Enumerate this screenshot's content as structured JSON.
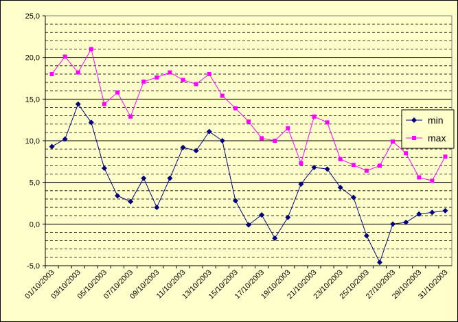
{
  "chart_data": {
    "type": "line",
    "categories": [
      "01/10/2003",
      null,
      "03/10/2003",
      null,
      "05/10/2003",
      null,
      "07/10/2003",
      null,
      "09/10/2003",
      null,
      "11/10/2003",
      null,
      "13/10/2003",
      null,
      "15/10/2003",
      null,
      "17/10/2003",
      null,
      "19/10/2003",
      null,
      "21/10/2003",
      null,
      "23/10/2003",
      null,
      "25/10/2003",
      null,
      "27/10/2003",
      null,
      "29/10/2003",
      null,
      "31/10/2003"
    ],
    "series": [
      {
        "name": "min",
        "color": "#000080",
        "marker": "diamond",
        "values": [
          9.3,
          10.2,
          14.4,
          12.2,
          6.7,
          3.4,
          2.7,
          5.5,
          2.0,
          5.5,
          9.2,
          8.8,
          11.1,
          10.0,
          2.8,
          -0.1,
          1.1,
          -1.7,
          0.8,
          4.8,
          6.8,
          6.6,
          4.4,
          3.2,
          -1.4,
          -4.6,
          0.0,
          0.2,
          1.2,
          1.4,
          1.6
        ]
      },
      {
        "name": "max",
        "color": "#ff00ff",
        "marker": "square",
        "values": [
          18.0,
          20.1,
          18.2,
          21.0,
          14.4,
          15.8,
          12.9,
          17.1,
          17.6,
          18.2,
          17.3,
          16.8,
          18.0,
          15.4,
          13.9,
          12.3,
          10.3,
          10.0,
          11.5,
          7.3,
          12.9,
          12.2,
          7.8,
          7.1,
          6.4,
          7.0,
          9.9,
          8.5,
          5.6,
          5.2,
          8.1
        ]
      }
    ],
    "ylim": [
      -5,
      25
    ],
    "yticks": [
      {
        "value": -5,
        "label": "-5,0"
      },
      {
        "value": 0,
        "label": "0,0"
      },
      {
        "value": 5,
        "label": "5,0"
      },
      {
        "value": 10,
        "label": "10,0"
      },
      {
        "value": 15,
        "label": "15,0"
      },
      {
        "value": 20,
        "label": "20,0"
      },
      {
        "value": 25,
        "label": "25,0"
      }
    ],
    "minor_yticks": [
      -4,
      -3,
      -2,
      -1,
      1,
      2,
      3,
      4,
      6,
      7,
      8,
      9,
      11,
      12,
      13,
      14,
      16,
      17,
      18,
      19,
      21,
      22,
      23,
      24
    ],
    "grid": true,
    "legend": "right"
  }
}
